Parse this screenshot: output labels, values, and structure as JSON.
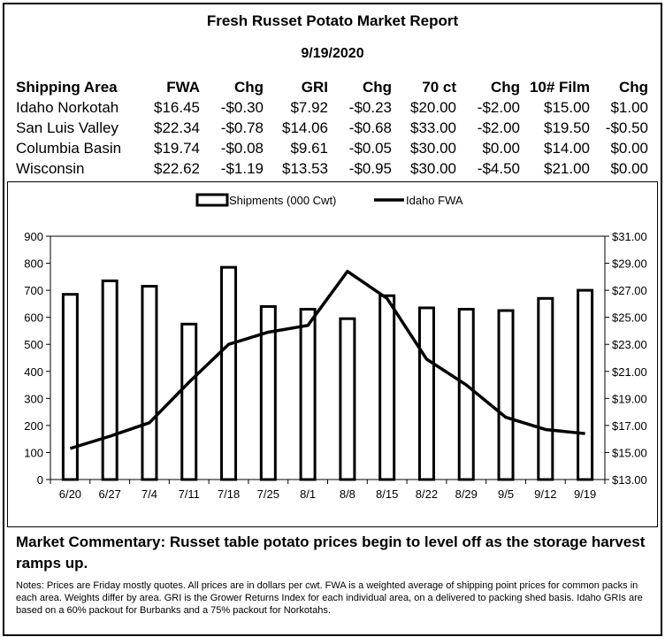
{
  "report": {
    "title": "Fresh Russet Potato Market Report",
    "date": "9/19/2020"
  },
  "table": {
    "headers": [
      "Shipping Area",
      "FWA",
      "Chg",
      "GRI",
      "Chg",
      "70 ct",
      "Chg",
      "10# Film",
      "Chg"
    ],
    "rows": [
      [
        "Idaho Norkotah",
        "$16.45",
        "-$0.30",
        "$7.92",
        "-$0.23",
        "$20.00",
        "-$2.00",
        "$15.00",
        "$1.00"
      ],
      [
        "San Luis Valley",
        "$22.34",
        "-$0.78",
        "$14.06",
        "-$0.68",
        "$33.00",
        "-$2.00",
        "$19.50",
        "-$0.50"
      ],
      [
        "Columbia Basin",
        "$19.74",
        "-$0.08",
        "$9.61",
        "-$0.05",
        "$30.00",
        "$0.00",
        "$14.00",
        "$0.00"
      ],
      [
        "Wisconsin",
        "$22.62",
        "-$1.19",
        "$13.53",
        "-$0.95",
        "$30.00",
        "-$4.50",
        "$21.00",
        "$0.00"
      ]
    ]
  },
  "chart_data": {
    "type": "bar",
    "categories": [
      "6/20",
      "6/27",
      "7/4",
      "7/11",
      "7/18",
      "7/25",
      "8/1",
      "8/8",
      "8/15",
      "8/22",
      "8/29",
      "9/5",
      "9/12",
      "9/19"
    ],
    "series": [
      {
        "name": "Shipments (000 Cwt)",
        "kind": "bar",
        "axis": "left",
        "values": [
          685,
          735,
          715,
          575,
          785,
          640,
          630,
          595,
          680,
          635,
          630,
          625,
          670,
          700
        ]
      },
      {
        "name": "Idaho FWA",
        "kind": "line",
        "axis": "right",
        "values": [
          15.3,
          16.2,
          17.2,
          20.2,
          23.0,
          23.9,
          24.4,
          28.4,
          26.4,
          21.9,
          20.0,
          17.6,
          16.7,
          16.4
        ]
      }
    ],
    "ylim_left": [
      0,
      900
    ],
    "yticks_left": [
      "0",
      "100",
      "200",
      "300",
      "400",
      "500",
      "600",
      "700",
      "800",
      "900"
    ],
    "ylim_right": [
      13,
      31
    ],
    "yticks_right": [
      "$13.00",
      "$15.00",
      "$17.00",
      "$19.00",
      "$21.00",
      "$23.00",
      "$25.00",
      "$27.00",
      "$29.00",
      "$31.00"
    ],
    "legend_position": "top-center",
    "grid": false
  },
  "commentary": "Market Commentary: Russet table potato prices begin to level off as the storage harvest ramps up.",
  "notes": "Notes: Prices are Friday mostly quotes. All prices are in dollars per cwt. FWA is a weighted average of shipping point prices for  common packs in each area. Weights differ by area. GRI is the Grower Returns Index for each individual area, on a delivered to packing shed basis. Idaho GRIs are based on a 60% packout for Burbanks and a 75% packout for Norkotahs."
}
